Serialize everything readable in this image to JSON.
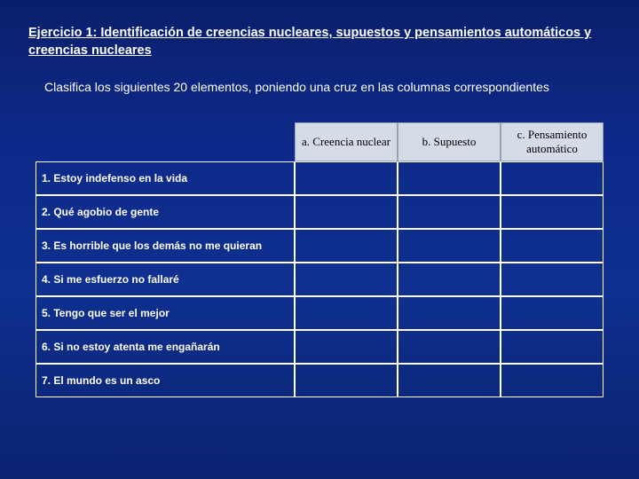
{
  "title": "Ejercicio 1: Identificación de creencias nucleares, supuestos y pensamientos automáticos y creencias nucleares",
  "instruction": "Clasifica los siguientes 20 elementos, poniendo una cruz en las columnas correspondientes",
  "headers": {
    "a": "a. Creencia nuclear",
    "b": "b. Supuesto",
    "c": "c. Pensamiento automático"
  },
  "rows": [
    {
      "label": "1. Estoy indefenso en la vida"
    },
    {
      "label": "2. Qué agobio de gente"
    },
    {
      "label": "3. Es horrible que los demás no me quieran"
    },
    {
      "label": "4. Si me esfuerzo no fallaré"
    },
    {
      "label": "5. Tengo que ser el mejor"
    },
    {
      "label": "6. Si no estoy atenta me engañarán"
    },
    {
      "label": "7. El mundo es un asco"
    }
  ],
  "colors": {
    "background_top": "#0a1f6b",
    "background_bottom": "#0a2270",
    "text": "#ffffff",
    "header_bg": "#d6dbe8",
    "header_text": "#000000",
    "border": "#ffffff"
  }
}
